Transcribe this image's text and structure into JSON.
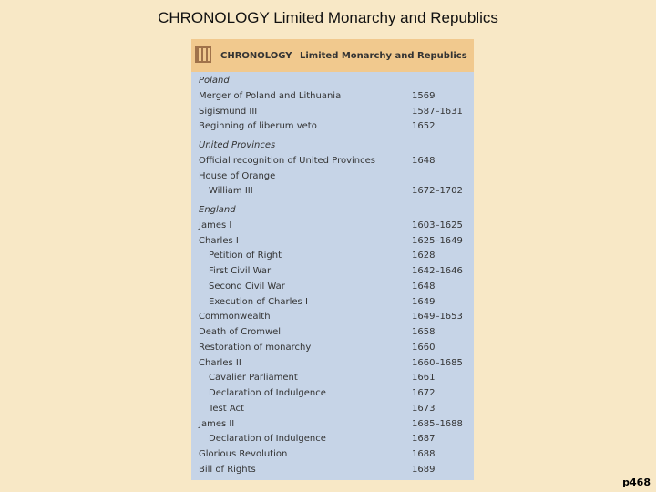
{
  "slide_title": "CHRONOLOGY Limited Monarchy and Republics",
  "box": {
    "label": "CHRONOLOGY",
    "title": "Limited Monarchy and Republics"
  },
  "sections": [
    {
      "heading": "Poland",
      "rows": [
        {
          "event": "Merger of Poland and Lithuania",
          "date": "1569"
        },
        {
          "event": "Sigismund III",
          "date": "1587–1631"
        },
        {
          "event": "Beginning of liberum veto",
          "date": "1652"
        }
      ]
    },
    {
      "heading": "United Provinces",
      "rows": [
        {
          "event": "Official recognition of United Provinces",
          "date": "1648"
        },
        {
          "event": "House of Orange",
          "sub": [
            {
              "event": "William III",
              "date": "1672–1702"
            }
          ]
        }
      ]
    },
    {
      "heading": "England",
      "rows": [
        {
          "event": "James I",
          "date": "1603–1625"
        },
        {
          "event": "Charles I",
          "date": "1625–1649",
          "sub": [
            {
              "event": "Petition of Right",
              "date": "1628"
            },
            {
              "event": "First Civil War",
              "date": "1642–1646"
            },
            {
              "event": "Second Civil War",
              "date": "1648"
            },
            {
              "event": "Execution of Charles I",
              "date": "1649"
            }
          ]
        },
        {
          "event": "Commonwealth",
          "date": "1649–1653"
        },
        {
          "event": "Death of Cromwell",
          "date": "1658"
        },
        {
          "event": "Restoration of monarchy",
          "date": "1660"
        },
        {
          "event": "Charles II",
          "date": "1660–1685",
          "sub": [
            {
              "event": "Cavalier Parliament",
              "date": "1661"
            },
            {
              "event": "Declaration of Indulgence",
              "date": "1672"
            },
            {
              "event": "Test Act",
              "date": "1673"
            }
          ]
        },
        {
          "event": "James II",
          "date": "1685–1688",
          "sub": [
            {
              "event": "Declaration of Indulgence",
              "date": "1687"
            }
          ]
        },
        {
          "event": "Glorious Revolution",
          "date": "1688"
        },
        {
          "event": "Bill of Rights",
          "date": "1689"
        }
      ]
    }
  ],
  "page_label": "p468"
}
